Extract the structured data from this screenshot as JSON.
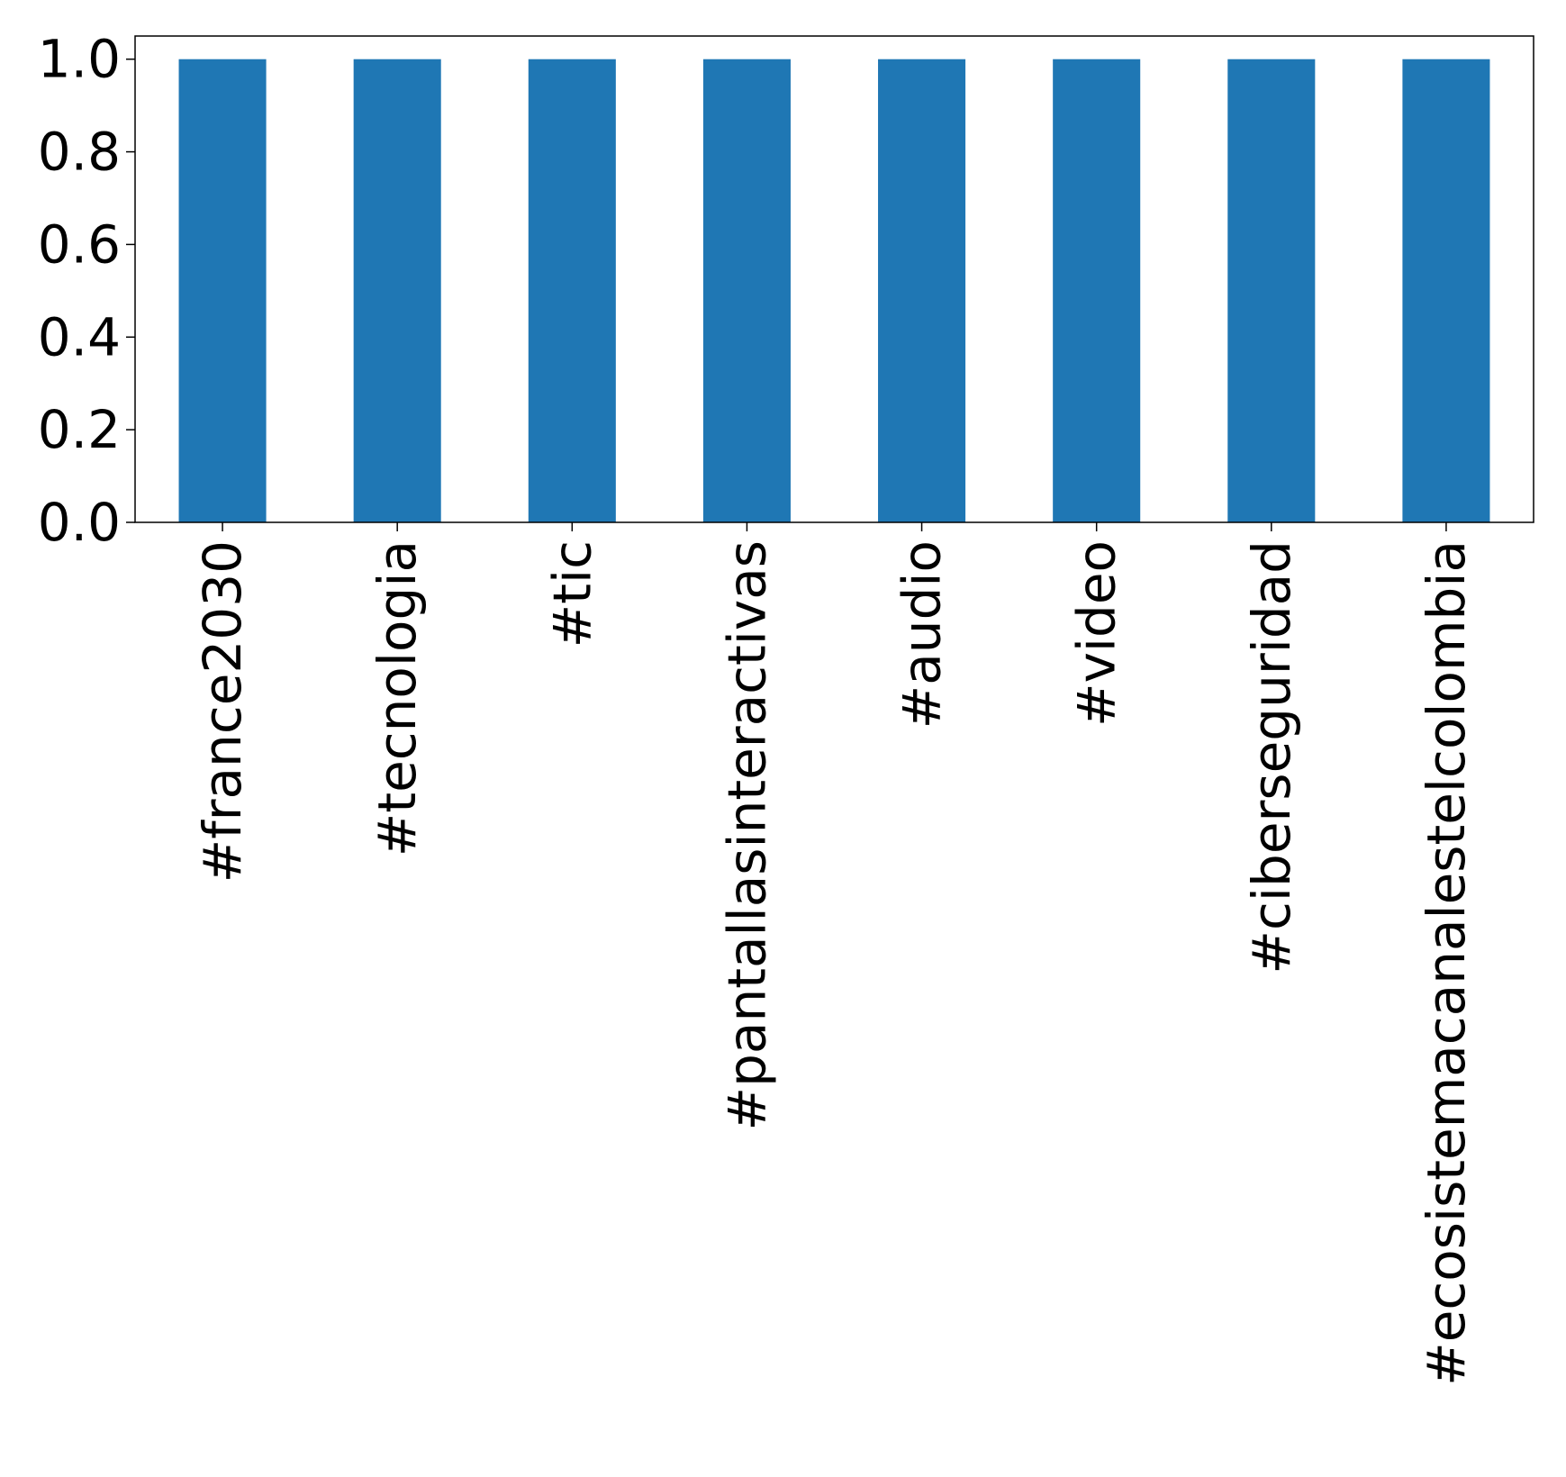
{
  "chart_data": {
    "type": "bar",
    "title": "",
    "xlabel": "",
    "ylabel": "",
    "categories": [
      "#france2030",
      "#tecnologia",
      "#tic",
      "#pantallasinteractivas",
      "#audio",
      "#video",
      "#ciberseguridad",
      "#ecosistemacanalestelcolombia"
    ],
    "values": [
      1.0,
      1.0,
      1.0,
      1.0,
      1.0,
      1.0,
      1.0,
      1.0
    ],
    "ylim": [
      0,
      1.05
    ],
    "yticks": [
      {
        "value": 0.0,
        "label": "0.0"
      },
      {
        "value": 0.2,
        "label": "0.2"
      },
      {
        "value": 0.4,
        "label": "0.4"
      },
      {
        "value": 0.6,
        "label": "0.6"
      },
      {
        "value": 0.8,
        "label": "0.8"
      },
      {
        "value": 1.0,
        "label": "1.0"
      }
    ],
    "grid": false,
    "legend": "none",
    "bar_color": "#1f77b4",
    "label_rotation": "vertical"
  }
}
